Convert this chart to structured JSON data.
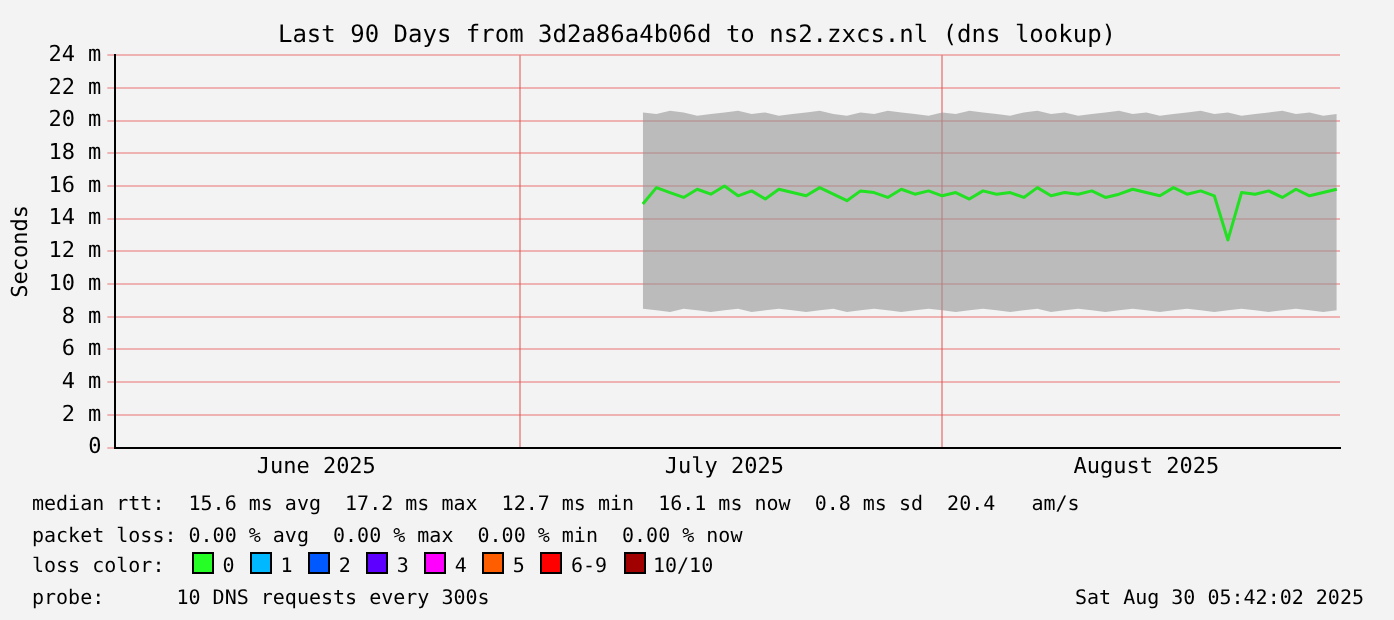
{
  "chart_data": {
    "type": "line",
    "title": "Last 90 Days from 3d2a86a4b06d to ns2.zxcs.nl (dns lookup)",
    "ylabel": "Seconds",
    "xlim": [
      "2025-06-01T05:42",
      "2025-08-30T05:42"
    ],
    "xticks": [
      {
        "value": "2025-06-16",
        "label": "June 2025"
      },
      {
        "value": "2025-07-01",
        "label": null
      },
      {
        "value": "2025-07-16",
        "label": "July 2025"
      },
      {
        "value": "2025-08-01",
        "label": null
      },
      {
        "value": "2025-08-16",
        "label": "August 2025"
      }
    ],
    "ylim": [
      0,
      24
    ],
    "yticks": [
      0,
      {
        "value": 2,
        "label": "2 m"
      },
      {
        "value": 4,
        "label": "4 m"
      },
      {
        "value": 6,
        "label": "6 m"
      },
      {
        "value": 8,
        "label": "8 m"
      },
      {
        "value": 10,
        "label": "10 m"
      },
      {
        "value": 12,
        "label": "12 m"
      },
      {
        "value": 14,
        "label": "14 m"
      },
      {
        "value": 16,
        "label": "16 m"
      },
      {
        "value": 18,
        "label": "18 m"
      },
      {
        "value": 20,
        "label": "20 m"
      },
      {
        "value": 22,
        "label": "22 m"
      },
      {
        "value": 24,
        "label": "24 m"
      }
    ],
    "grid": true,
    "legend": false,
    "marker": "none",
    "line_style": "solid",
    "x": [
      "2025-07-10",
      "2025-07-11",
      "2025-07-12",
      "2025-07-13",
      "2025-07-14",
      "2025-07-15",
      "2025-07-16",
      "2025-07-17",
      "2025-07-18",
      "2025-07-19",
      "2025-07-20",
      "2025-07-21",
      "2025-07-22",
      "2025-07-23",
      "2025-07-24",
      "2025-07-25",
      "2025-07-26",
      "2025-07-27",
      "2025-07-28",
      "2025-07-29",
      "2025-07-30",
      "2025-07-31",
      "2025-08-01",
      "2025-08-02",
      "2025-08-03",
      "2025-08-04",
      "2025-08-05",
      "2025-08-06",
      "2025-08-07",
      "2025-08-08",
      "2025-08-09",
      "2025-08-10",
      "2025-08-11",
      "2025-08-12",
      "2025-08-13",
      "2025-08-14",
      "2025-08-15",
      "2025-08-16",
      "2025-08-17",
      "2025-08-18",
      "2025-08-19",
      "2025-08-20",
      "2025-08-21",
      "2025-08-22",
      "2025-08-23",
      "2025-08-24",
      "2025-08-25",
      "2025-08-26",
      "2025-08-27",
      "2025-08-28",
      "2025-08-29",
      "2025-08-30"
    ],
    "series": [
      {
        "color": "#22e022",
        "values": [
          14.9,
          15.9,
          15.6,
          15.3,
          15.8,
          15.5,
          16,
          15.4,
          15.7,
          15.2,
          15.8,
          15.6,
          15.4,
          15.9,
          15.5,
          15.1,
          15.7,
          15.6,
          15.3,
          15.8,
          15.5,
          15.7,
          15.4,
          15.6,
          15.2,
          15.7,
          15.5,
          15.6,
          15.3,
          15.9,
          15.4,
          15.6,
          15.5,
          15.7,
          15.3,
          15.5,
          15.8,
          15.6,
          15.4,
          15.9,
          15.5,
          15.7,
          15.4,
          12.7,
          15.6,
          15.5,
          15.7,
          15.3,
          15.8,
          15.4,
          15.6,
          15.8
        ],
        "lower": [
          8.5,
          8.4,
          8.3,
          8.5,
          8.4,
          8.3,
          8.4,
          8.5,
          8.3,
          8.4,
          8.5,
          8.4,
          8.3,
          8.4,
          8.5,
          8.3,
          8.4,
          8.5,
          8.4,
          8.3,
          8.4,
          8.5,
          8.4,
          8.3,
          8.4,
          8.5,
          8.4,
          8.3,
          8.4,
          8.5,
          8.3,
          8.4,
          8.5,
          8.4,
          8.3,
          8.4,
          8.5,
          8.4,
          8.3,
          8.4,
          8.5,
          8.4,
          8.3,
          8.4,
          8.5,
          8.4,
          8.3,
          8.4,
          8.5,
          8.4,
          8.3,
          8.4
        ],
        "upper": [
          20.5,
          20.4,
          20.6,
          20.5,
          20.3,
          20.4,
          20.5,
          20.6,
          20.4,
          20.5,
          20.3,
          20.4,
          20.5,
          20.6,
          20.4,
          20.3,
          20.5,
          20.4,
          20.6,
          20.5,
          20.4,
          20.3,
          20.5,
          20.4,
          20.6,
          20.5,
          20.4,
          20.3,
          20.5,
          20.6,
          20.4,
          20.5,
          20.3,
          20.4,
          20.5,
          20.6,
          20.4,
          20.5,
          20.3,
          20.4,
          20.5,
          20.6,
          20.4,
          20.5,
          20.3,
          20.4,
          20.5,
          20.6,
          20.4,
          20.5,
          20.3,
          20.4
        ]
      }
    ],
    "annotations": [
      "median rtt:  15.6 ms avg  17.2 ms max  12.7 ms min  16.1 ms now  0.8 ms sd  20.4   am/s",
      "packet loss: 0.00 % avg  0.00 % max  0.00 % min  0.00 % now",
      "loss color:",
      "0",
      "1",
      "2",
      "3",
      "4",
      "5",
      "6-9",
      "10/10",
      "probe:",
      "10 DNS requests every 300s",
      "Sat Aug 30 05:42:02 2025"
    ]
  }
}
